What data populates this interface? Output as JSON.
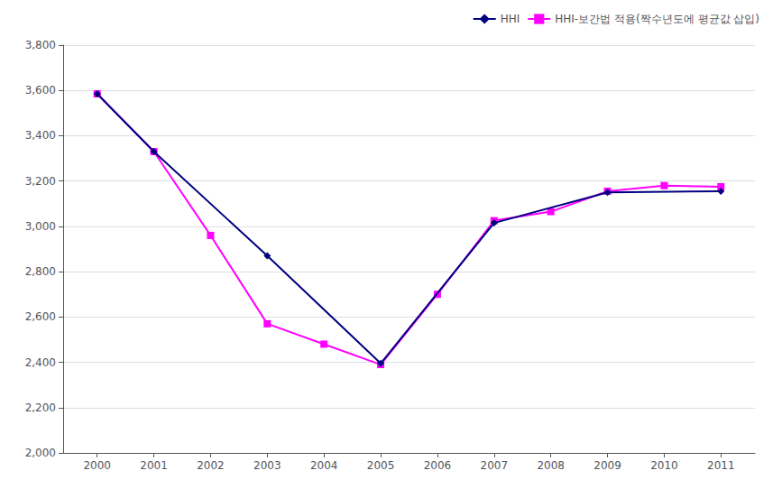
{
  "chart_data": {
    "type": "line",
    "series": [
      {
        "name": "HHI",
        "color": "#000080",
        "marker": "diamond",
        "x": [
          2000,
          2001,
          2003,
          2005,
          2007,
          2009,
          2011
        ],
        "values": [
          3585,
          3330,
          2870,
          2395,
          3015,
          3150,
          3155
        ]
      },
      {
        "name": "HHI-보간법 적용(짝수년도에 평균값 삽입)",
        "color": "#FF00FF",
        "marker": "square",
        "x": [
          2000,
          2001,
          2002,
          2003,
          2004,
          2005,
          2006,
          2007,
          2008,
          2009,
          2010,
          2011
        ],
        "values": [
          3585,
          3330,
          2960,
          2570,
          2480,
          2390,
          2700,
          3025,
          3065,
          3155,
          3180,
          3175
        ]
      }
    ],
    "xlim": [
      1999.4,
      2011.6
    ],
    "xticks": [
      2000,
      2001,
      2002,
      2003,
      2004,
      2005,
      2006,
      2007,
      2008,
      2009,
      2010,
      2011
    ],
    "ylim": [
      2000,
      3800
    ],
    "yticks": [
      {
        "value": 2000,
        "label": "2,000"
      },
      {
        "value": 2200,
        "label": "2,200"
      },
      {
        "value": 2400,
        "label": "2,400"
      },
      {
        "value": 2600,
        "label": "2,600"
      },
      {
        "value": 2800,
        "label": "2,800"
      },
      {
        "value": 3000,
        "label": "3,000"
      },
      {
        "value": 3200,
        "label": "3,200"
      },
      {
        "value": 3400,
        "label": "3,400"
      },
      {
        "value": 3600,
        "label": "3,600"
      },
      {
        "value": 3800,
        "label": "3,800"
      }
    ],
    "grid": true,
    "legend": "upper right"
  }
}
